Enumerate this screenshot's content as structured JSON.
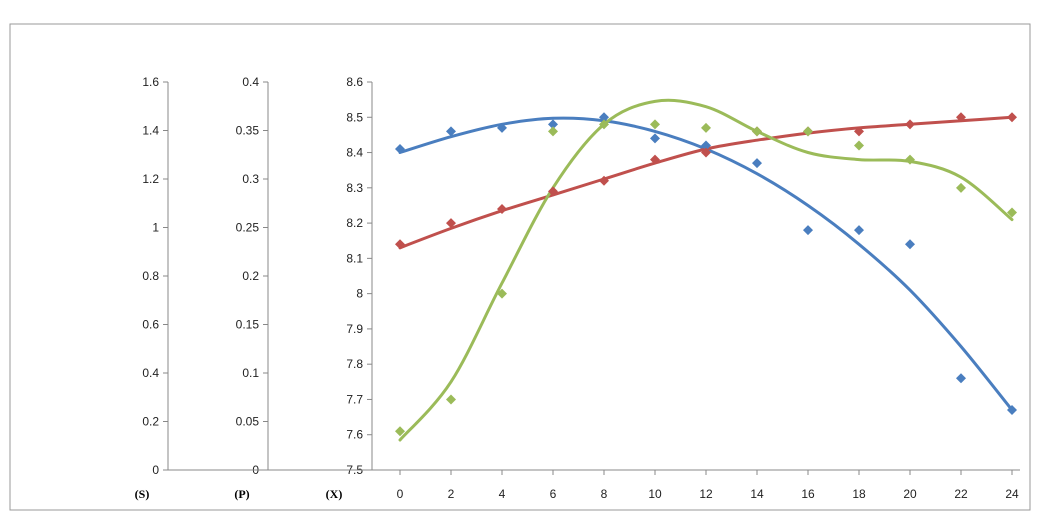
{
  "chart_data": {
    "type": "scatter",
    "title": "",
    "xlabel": "",
    "x_ticks": [
      "0",
      "2",
      "4",
      "6",
      "8",
      "10",
      "12",
      "14",
      "16",
      "18",
      "20",
      "22",
      "24"
    ],
    "xlim": [
      0,
      24
    ],
    "grid": false,
    "legend": "none",
    "axes": [
      {
        "label": "(S)",
        "ylim": [
          0,
          1.6
        ],
        "ticks": [
          "0",
          "0.2",
          "0.4",
          "0.6",
          "0.8",
          "1",
          "1.2",
          "1.4",
          "1.6"
        ]
      },
      {
        "label": "(P)",
        "ylim": [
          0,
          0.4
        ],
        "ticks": [
          "0",
          "0.05",
          "0.1",
          "0.15",
          "0.2",
          "0.25",
          "0.3",
          "0.35",
          "0.4"
        ]
      },
      {
        "label": "(X)",
        "ylim": [
          7.5,
          8.6
        ],
        "ticks": [
          "7.5",
          "7.6",
          "7.7",
          "7.8",
          "7.9",
          "8",
          "8.1",
          "8.2",
          "8.3",
          "8.4",
          "8.5",
          "8.6"
        ]
      }
    ],
    "series": [
      {
        "color": "#4a7ebf",
        "marker": "diamond",
        "x": [
          0,
          2,
          4,
          6,
          8,
          10,
          12,
          14,
          16,
          18,
          20,
          22,
          24
        ],
        "values": [
          8.41,
          8.46,
          8.47,
          8.48,
          8.5,
          8.44,
          8.42,
          8.37,
          8.18,
          8.18,
          8.14,
          7.76,
          7.67
        ],
        "trend": [
          8.4,
          8.445,
          8.48,
          8.497,
          8.49,
          8.46,
          8.41,
          8.34,
          8.25,
          8.14,
          8.01,
          7.85,
          7.67
        ]
      },
      {
        "color": "#c0504d",
        "marker": "diamond",
        "x": [
          0,
          2,
          4,
          6,
          8,
          10,
          12,
          14,
          16,
          18,
          20,
          22,
          24
        ],
        "values": [
          8.14,
          8.2,
          8.24,
          8.29,
          8.32,
          8.38,
          8.4,
          8.46,
          8.46,
          8.46,
          8.48,
          8.5,
          8.5
        ],
        "trend": [
          8.13,
          8.185,
          8.235,
          8.28,
          8.325,
          8.37,
          8.41,
          8.435,
          8.455,
          8.47,
          8.48,
          8.49,
          8.5
        ]
      },
      {
        "color": "#9bbb59",
        "marker": "diamond",
        "x": [
          0,
          2,
          4,
          6,
          8,
          10,
          12,
          14,
          16,
          18,
          20,
          22,
          24
        ],
        "values": [
          7.61,
          7.7,
          8.0,
          8.46,
          8.48,
          8.48,
          8.47,
          8.46,
          8.46,
          8.42,
          8.38,
          8.3,
          8.23
        ],
        "trend": [
          7.585,
          7.75,
          8.03,
          8.3,
          8.48,
          8.545,
          8.53,
          8.46,
          8.4,
          8.38,
          8.375,
          8.33,
          8.21
        ]
      }
    ]
  }
}
